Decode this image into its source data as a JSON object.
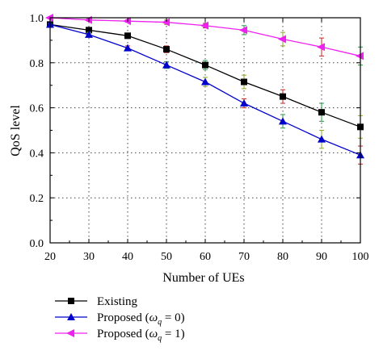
{
  "chart_data": {
    "type": "line",
    "xlabel": "Number of UEs",
    "ylabel": "QoS level",
    "x": [
      20,
      30,
      40,
      50,
      60,
      70,
      80,
      90,
      100
    ],
    "xlim": [
      20,
      100
    ],
    "ylim": [
      0.0,
      1.0
    ],
    "x_ticks": [
      "20",
      "30",
      "40",
      "50",
      "60",
      "70",
      "80",
      "90",
      "100"
    ],
    "y_ticks": [
      "0.0",
      "0.2",
      "0.4",
      "0.6",
      "0.8",
      "1.0"
    ],
    "grid": true,
    "legend_position": "bottom-left, below plot",
    "series": [
      {
        "name": "Existing",
        "color": "#000000",
        "marker": "square",
        "values": [
          0.97,
          0.945,
          0.92,
          0.86,
          0.79,
          0.715,
          0.65,
          0.58,
          0.515
        ],
        "errors": [
          0.01,
          0.01,
          0.01,
          0.015,
          0.02,
          0.03,
          0.03,
          0.04,
          0.05
        ]
      },
      {
        "name": "Proposed (ωq = 0)",
        "color": "#0000cc",
        "marker": "triangle-up",
        "values": [
          0.97,
          0.925,
          0.865,
          0.79,
          0.715,
          0.62,
          0.54,
          0.46,
          0.39
        ],
        "errors": [
          0.005,
          0.01,
          0.01,
          0.015,
          0.02,
          0.02,
          0.03,
          0.04,
          0.04
        ]
      },
      {
        "name": "Proposed (ωq = 1)",
        "color": "#ee22ee",
        "marker": "triangle-left",
        "values": [
          1.0,
          0.99,
          0.985,
          0.98,
          0.965,
          0.945,
          0.905,
          0.87,
          0.83
        ],
        "errors": [
          0.005,
          0.005,
          0.005,
          0.01,
          0.01,
          0.02,
          0.03,
          0.04,
          0.04
        ]
      }
    ]
  },
  "legend": {
    "items": [
      {
        "label": "Existing"
      },
      {
        "prefix": "Proposed (",
        "symbol": "ω",
        "sub": "q",
        "suffix": " = 0)"
      },
      {
        "prefix": "Proposed (",
        "symbol": "ω",
        "sub": "q",
        "suffix": " = 1)"
      }
    ]
  }
}
